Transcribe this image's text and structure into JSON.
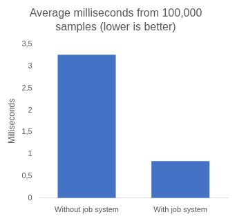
{
  "chart_data": {
    "type": "bar",
    "title": [
      "Average milliseconds from 100,000",
      "samples (lower is better)"
    ],
    "y_label": "Milliseconds",
    "categories": [
      "Without job system",
      "With job system"
    ],
    "values": [
      3.26,
      0.84
    ],
    "color": "#4472c4",
    "ylim": [
      0,
      3.5
    ],
    "yticks": [
      0,
      {
        "value": 0.5,
        "label": "0,5"
      },
      1,
      {
        "value": 1.5,
        "label": "1,5"
      },
      2,
      {
        "value": 2.5,
        "label": "2,5"
      },
      3,
      {
        "value": 3.5,
        "label": "3,5"
      }
    ],
    "grid": false
  }
}
